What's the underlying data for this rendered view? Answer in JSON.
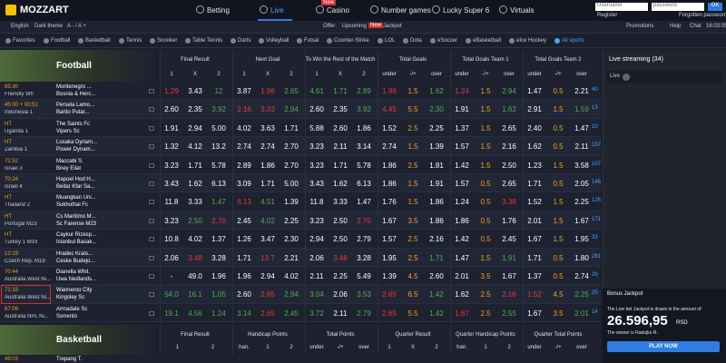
{
  "header": {
    "logo": "MOZZART",
    "nav": [
      {
        "label": "Betting"
      },
      {
        "label": "Live"
      },
      {
        "label": "Casino",
        "badge": "New"
      },
      {
        "label": "Number games"
      },
      {
        "label": "Lucky Super 6"
      },
      {
        "label": "Virtuals"
      }
    ],
    "username": "Username",
    "password": "password",
    "ok": "OK",
    "register": "Register",
    "forgotten": "Forgotten password"
  },
  "subnav": {
    "left": [
      "English",
      "Dark theme",
      "A - / A +"
    ],
    "center": [
      "Offer",
      "Upcoming"
    ],
    "badge": "New",
    "jackpot": "Jackpot",
    "right": [
      "Promotions",
      "Help",
      "Chat"
    ],
    "clock": "16:03:05"
  },
  "sports": [
    "Favorites",
    "Football",
    "Basketball",
    "Tennis",
    "Snooker",
    "Table Tennis",
    "Darts",
    "Volleyball",
    "Futsal",
    "Counter-Strike",
    "LOL",
    "Dota",
    "eSoccer",
    "eBasketball",
    "eIce Hockey",
    "All sports"
  ],
  "football": {
    "title": "Football",
    "groups": [
      {
        "title": "Final Result",
        "cols": [
          "1",
          "X",
          "2"
        ]
      },
      {
        "title": "Next Goal",
        "cols": [
          "1",
          "X",
          "2"
        ]
      },
      {
        "title": "To Win the Rest of the Match",
        "cols": [
          "1",
          "X",
          "2"
        ]
      },
      {
        "title": "Total Goals",
        "cols": [
          "under",
          "-/+",
          "over"
        ]
      },
      {
        "title": "Total Goals Team 1",
        "cols": [
          "under",
          "-/+",
          "over"
        ]
      },
      {
        "title": "Total Goals Team 2",
        "cols": [
          "under",
          "-/+",
          "over"
        ]
      }
    ],
    "rows": [
      {
        "time": "65:30",
        "league": "Friendly Wfl",
        "home": "Montenegro ...",
        "away": "Bosnia & Herc...",
        "count": "40",
        "odds": [
          "1.29",
          "3.43",
          "12",
          "3.87",
          "1.96",
          "2.65",
          "4.61",
          "1.71",
          "2.89",
          "1.96",
          "1.5",
          "1.62",
          "1.24",
          "1.5",
          "2.94",
          "1.47",
          "0.5",
          "2.21"
        ],
        "trend": [
          "down",
          null,
          "up",
          null,
          "down",
          "up",
          "up",
          "up",
          "up",
          "down",
          null,
          "up",
          "down",
          null,
          "up",
          null,
          null,
          null
        ]
      },
      {
        "time": "45:00 + 00:51",
        "league": "Indonesia 1",
        "home": "Persela Lamo...",
        "away": "Barito Putar...",
        "count": "13",
        "odds": [
          "2.60",
          "2.35",
          "3.92",
          "2.16",
          "3.33",
          "2.94",
          "2.60",
          "2.35",
          "3.92",
          "4.45",
          "5.5",
          "2.30",
          "1.91",
          "1.5",
          "1.62",
          "2.91",
          "1.5",
          "1.59"
        ],
        "trend": [
          null,
          null,
          "up",
          "down",
          "down",
          "up",
          null,
          null,
          "up",
          "down",
          null,
          "up",
          null,
          null,
          "up",
          null,
          null,
          "up"
        ]
      },
      {
        "time": "HT",
        "league": "Uganda 1",
        "home": "The Saints Fc",
        "away": "Vipers Sc",
        "count": "10",
        "odds": [
          "1.91",
          "2.94",
          "5.00",
          "4.02",
          "3.63",
          "1.71",
          "5.88",
          "2.60",
          "1.86",
          "1.52",
          "2.5",
          "2.25",
          "1.37",
          "1.5",
          "2.65",
          "2.40",
          "0.5",
          "1.47"
        ],
        "trend": [
          null,
          null,
          null,
          null,
          null,
          null,
          null,
          null,
          null,
          null,
          null,
          null,
          null,
          null,
          null,
          null,
          null,
          null
        ]
      },
      {
        "time": "HT",
        "league": "Zambia 1",
        "home": "Lusaka Dynam...",
        "away": "Power Dynam...",
        "count": "137",
        "odds": [
          "1.32",
          "4.12",
          "13.2",
          "2.74",
          "2.74",
          "2.70",
          "3.23",
          "2.11",
          "3.14",
          "2.74",
          "1.5",
          "1.39",
          "1.57",
          "1.5",
          "2.16",
          "1.62",
          "0.5",
          "2.11"
        ],
        "trend": [
          null,
          null,
          null,
          null,
          null,
          null,
          null,
          null,
          null,
          null,
          null,
          null,
          null,
          null,
          null,
          null,
          null,
          null
        ]
      },
      {
        "time": "72:52",
        "league": "Israel 3",
        "home": "Maccabi S.",
        "away": "Bney Eilat",
        "count": "107",
        "odds": [
          "3.23",
          "1.71",
          "5.78",
          "2.89",
          "1.86",
          "2.70",
          "3.23",
          "1.71",
          "5.78",
          "1.86",
          "2.5",
          "1.81",
          "1.42",
          "1.5",
          "2.50",
          "1.23",
          "1.5",
          "3.58"
        ],
        "trend": [
          null,
          null,
          null,
          null,
          null,
          null,
          null,
          null,
          null,
          null,
          null,
          null,
          null,
          null,
          null,
          null,
          null,
          null
        ]
      },
      {
        "time": "70:24",
        "league": "Israel 4",
        "home": "Hapoel Hod H...",
        "away": "Beitar Kfar Sa...",
        "count": "146",
        "odds": [
          "3.43",
          "1.62",
          "6.13",
          "3.09",
          "1.71",
          "5.00",
          "3.43",
          "1.62",
          "6.13",
          "1.86",
          "1.5",
          "1.91",
          "1.57",
          "0.5",
          "2.65",
          "1.71",
          "0.5",
          "2.05"
        ],
        "trend": [
          null,
          null,
          null,
          null,
          null,
          null,
          null,
          null,
          null,
          null,
          null,
          null,
          null,
          null,
          null,
          null,
          null,
          null
        ]
      },
      {
        "time": "HT",
        "league": "Thailand 2",
        "home": "Muangkan Uni...",
        "away": "Sukhothai Fc",
        "count": "125",
        "odds": [
          "11.8",
          "3.33",
          "1.47",
          "6.13",
          "4.51",
          "1.39",
          "11.8",
          "3.33",
          "1.47",
          "1.76",
          "1.5",
          "1.86",
          "1.24",
          "0.5",
          "3.38",
          "1.52",
          "1.5",
          "2.25"
        ],
        "trend": [
          null,
          null,
          "up",
          "down",
          "up",
          null,
          null,
          null,
          null,
          null,
          null,
          null,
          null,
          null,
          "down",
          null,
          null,
          null
        ]
      },
      {
        "time": "HT",
        "league": "Portugal M23",
        "home": "Cs Maritimo M...",
        "away": "Sc Farense M23",
        "count": "171",
        "odds": [
          "3.23",
          "2.50",
          "2.70",
          "2.45",
          "4.02",
          "2.25",
          "3.23",
          "2.50",
          "2.70",
          "1.67",
          "3.5",
          "1.86",
          "1.86",
          "0.5",
          "1.76",
          "2.01",
          "1.5",
          "1.67"
        ],
        "trend": [
          null,
          "up",
          "down",
          null,
          "up",
          null,
          null,
          null,
          "down",
          null,
          null,
          null,
          null,
          null,
          null,
          null,
          null,
          null
        ]
      },
      {
        "time": "HT",
        "league": "Turkey 1 M19",
        "home": "Caykur Rizesp...",
        "away": "Istanbul Basak...",
        "count": "33",
        "odds": [
          "10.8",
          "4.02",
          "1.37",
          "1.26",
          "3.47",
          "2.30",
          "2.94",
          "2.50",
          "2.79",
          "1.57",
          "2.5",
          "2.16",
          "1.42",
          "0.5",
          "2.45",
          "1.67",
          "1.5",
          "1.95"
        ],
        "trend": [
          null,
          null,
          null,
          null,
          null,
          null,
          null,
          null,
          null,
          null,
          null,
          null,
          null,
          null,
          null,
          null,
          null,
          null
        ]
      },
      {
        "time": "12:19",
        "league": "Czech Rep. M19",
        "home": "Hradec Kralo...",
        "away": "Ceske Budejo...",
        "count": "281",
        "odds": [
          "2.06",
          "3.48",
          "3.28",
          "1.71",
          "13.7",
          "2.21",
          "2.06",
          "3.48",
          "3.28",
          "1.95",
          "2.5",
          "1.71",
          "1.47",
          "1.5",
          "1.91",
          "1.71",
          "0.5",
          "1.80"
        ],
        "trend": [
          null,
          "down",
          null,
          null,
          "down",
          null,
          null,
          "down",
          null,
          null,
          null,
          "up",
          null,
          null,
          "up",
          null,
          null,
          null
        ]
      },
      {
        "time": "70:44",
        "league": "Australia West Ni...",
        "home": "Dianella Whit.",
        "away": "Uwa Nedlands...",
        "count": "26",
        "odds": [
          "-",
          "49.0",
          "1.96",
          "1.96",
          "2.94",
          "4.02",
          "2.11",
          "2.25",
          "5.49",
          "1.39",
          "4.5",
          "2.60",
          "2.01",
          "3.5",
          "1.67",
          "1.37",
          "0.5",
          "2.74"
        ],
        "trend": [
          null,
          null,
          null,
          null,
          null,
          null,
          null,
          null,
          null,
          null,
          null,
          null,
          null,
          null,
          null,
          null,
          null,
          null
        ]
      },
      {
        "time": "71:33",
        "league": "Australia West Ni...",
        "home": "Wanneroo City",
        "away": "Kingsley Sc",
        "count": "25",
        "odds": [
          "54.0",
          "16.1",
          "1.05",
          "2.60",
          "2.65",
          "2.94",
          "3.04",
          "2.06",
          "3.53",
          "2.65",
          "6.5",
          "1.42",
          "1.62",
          "2.5",
          "2.16",
          "1.52",
          "4.5",
          "2.25"
        ],
        "trend": [
          "up",
          "up",
          "up",
          null,
          "down",
          "up",
          "up",
          null,
          "up",
          "down",
          null,
          "up",
          null,
          null,
          "down",
          "down",
          null,
          "up"
        ]
      },
      {
        "time": "67:09",
        "league": "Australia NPL Ni...",
        "home": "Armadale Sc",
        "away": "Sorrento",
        "count": "14",
        "odds": [
          "19.1",
          "4.56",
          "1.24",
          "3.14",
          "2.65",
          "2.45",
          "3.72",
          "2.11",
          "2.79",
          "2.65",
          "5.5",
          "1.42",
          "1.67",
          "2.5",
          "2.55",
          "1.67",
          "3.5",
          "2.01"
        ],
        "trend": [
          "up",
          "up",
          "up",
          "up",
          "down",
          "up",
          "up",
          null,
          "up",
          "down",
          null,
          "up",
          "down",
          null,
          "up",
          null,
          null,
          "up"
        ]
      }
    ]
  },
  "basketball": {
    "title": "Basketball",
    "groups": [
      {
        "title": "Final Result",
        "cols": [
          "1",
          "2"
        ]
      },
      {
        "title": "Handicap Points",
        "cols": [
          "han.",
          "1",
          "2"
        ]
      },
      {
        "title": "Total Points",
        "cols": [
          "under",
          "-/+",
          "over"
        ]
      },
      {
        "title": "Quarter Result",
        "cols": [
          "1",
          "X",
          "2"
        ]
      },
      {
        "title": "Quarter Handicap Points",
        "cols": [
          "han.",
          "1",
          "2"
        ]
      },
      {
        "title": "Quarter Total Points",
        "cols": [
          "under",
          "-/+",
          "over"
        ]
      }
    ],
    "rows": [
      {
        "time": "49:03",
        "home": "Trepang T."
      }
    ]
  },
  "panel": {
    "streaming": "Live streaming (34)",
    "live": "Live",
    "jackpot_title": "Bonus Jackpot",
    "jackpot_text": "The Live bet Jackpot is drawn in the amount of:",
    "amount": "26.596,95",
    "currency": "RSD",
    "winner": "The winner is Radojko R.",
    "button": "PLAY NOW"
  }
}
